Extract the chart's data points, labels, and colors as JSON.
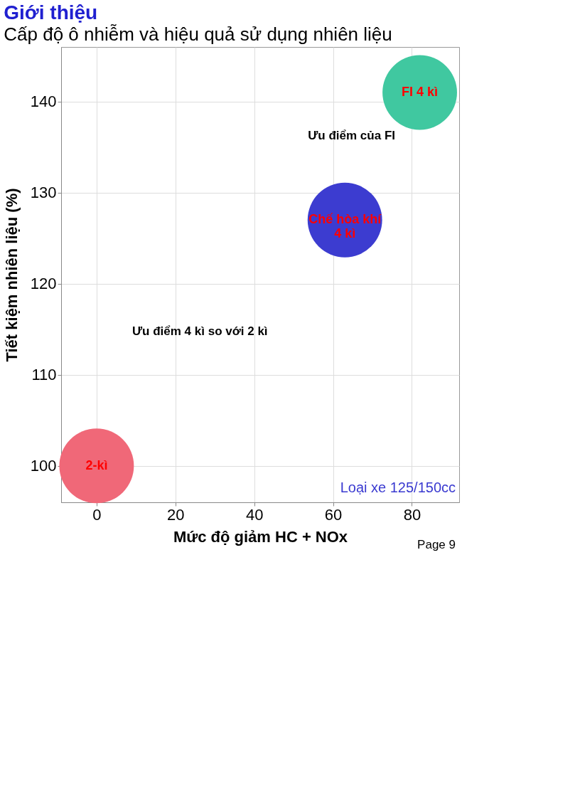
{
  "chart_data": {
    "type": "scatter",
    "title": "Giới thiệu",
    "subtitle": "Cấp độ ô nhiễm và hiệu quả sử dụng nhiên liệu",
    "xlabel": "Mức độ giảm HC + NOx",
    "ylabel": "Tiết kiệm nhiên liệu (%)",
    "series": [
      {
        "x": [
          0
        ],
        "values": [
          100
        ],
        "color": "#f06878"
      },
      {
        "x": [
          63
        ],
        "values": [
          127
        ],
        "color": "#3c3cd0"
      },
      {
        "x": [
          82
        ],
        "values": [
          141
        ],
        "color": "#40c8a0"
      }
    ],
    "xlim": [
      -9,
      92
    ],
    "ylim": [
      96,
      146
    ],
    "xticks": [
      0,
      20,
      40,
      60,
      80
    ],
    "yticks": [
      100,
      110,
      120,
      130,
      140
    ],
    "grid": true,
    "annotations": [
      {
        "text": "2-kì",
        "x": 0,
        "y": 100
      },
      {
        "text": "Chế hòa khí\n4 kì",
        "x": 63,
        "y": 127
      },
      {
        "text": "FI 4 kì",
        "x": 82,
        "y": 141
      },
      "Ưu điểm 4 kì so với 2 kì",
      "Ưu điểm của FI",
      "Loại xe 125/150cc",
      "Page 9"
    ]
  }
}
